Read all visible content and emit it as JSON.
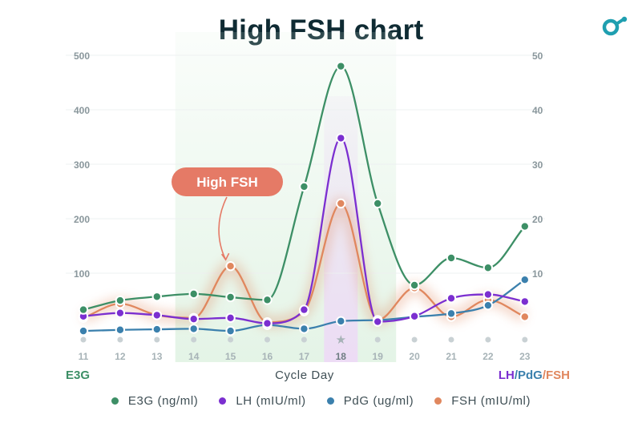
{
  "title": "High FSH chart",
  "colors": {
    "e3g": "#3d8f66",
    "lh": "#7b2fd0",
    "pdg": "#3b80ad",
    "fsh": "#e0875e",
    "annotation_bg": "#e57a66",
    "fertile_window": "#dff2e2",
    "peak_day": "#eddcf5",
    "title": "#0f2b33"
  },
  "axes": {
    "left_label": "E3G",
    "x_label": "Cycle Day",
    "right_label_parts": [
      {
        "text": "LH",
        "color_key": "lh"
      },
      {
        "text": "/",
        "color_key": "pdg"
      },
      {
        "text": "PdG",
        "color_key": "pdg"
      },
      {
        "text": "/",
        "color_key": "fsh"
      },
      {
        "text": "FSH",
        "color_key": "fsh"
      }
    ]
  },
  "legend": [
    {
      "label": "E3G (ng/ml)",
      "color_key": "e3g"
    },
    {
      "label": "LH (mIU/ml)",
      "color_key": "lh"
    },
    {
      "label": "PdG (ug/ml)",
      "color_key": "pdg"
    },
    {
      "label": "FSH (mIU/ml)",
      "color_key": "fsh"
    }
  ],
  "chart_data": {
    "type": "line",
    "title": "High FSH chart",
    "xlabel": "Cycle Day",
    "x": [
      "11",
      "12",
      "13",
      "14",
      "15",
      "16",
      "17",
      "18",
      "19",
      "20",
      "21",
      "22",
      "23"
    ],
    "peak_day": "18",
    "fertile_window": [
      "14",
      "19"
    ],
    "y_left": {
      "label": "E3G",
      "ticks": [
        100,
        200,
        300,
        400,
        500
      ],
      "range": [
        0,
        500
      ]
    },
    "y_right": {
      "label": "LH/PdG/FSH",
      "ticks": [
        10,
        20,
        30,
        40,
        50
      ],
      "range": [
        0,
        50
      ]
    },
    "grid": true,
    "series": [
      {
        "name": "E3G (ng/ml)",
        "axis": "left",
        "color_key": "e3g",
        "values": [
          55,
          72,
          79,
          84,
          78,
          73,
          281,
          502,
          250,
          100,
          150,
          132,
          208
        ]
      },
      {
        "name": "LH (mIU/ml)",
        "axis": "right",
        "color_key": "lh",
        "values": [
          4.3,
          4.9,
          4.5,
          3.8,
          4.0,
          3.0,
          5.5,
          37.0,
          3.3,
          4.3,
          7.6,
          8.3,
          7.0
        ]
      },
      {
        "name": "PdG (ug/ml)",
        "axis": "right",
        "color_key": "pdg",
        "values": [
          1.6,
          1.8,
          1.9,
          2.0,
          1.6,
          2.7,
          2.0,
          3.4,
          3.6,
          4.2,
          4.8,
          6.3,
          11.0
        ]
      },
      {
        "name": "FSH (mIU/ml)",
        "axis": "right",
        "color_key": "fsh",
        "values": [
          4.0,
          6.6,
          4.5,
          4.0,
          13.5,
          3.2,
          5.2,
          25.0,
          3.6,
          9.5,
          4.2,
          7.3,
          4.2
        ]
      }
    ],
    "annotations": [
      {
        "text": "High FSH",
        "series": "FSH (mIU/ml)",
        "x": "15"
      }
    ]
  }
}
